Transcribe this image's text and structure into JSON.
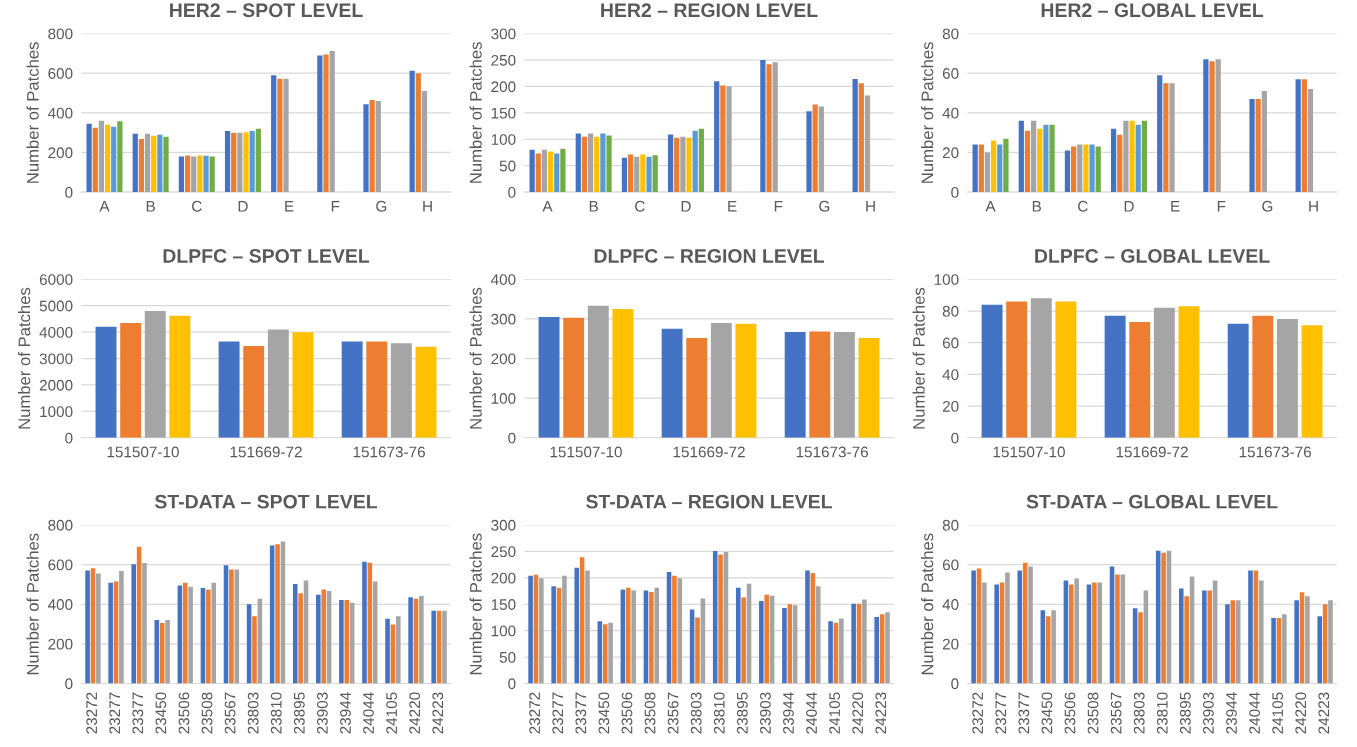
{
  "chart_data": [
    {
      "type": "bar",
      "title": "HER2 – SPOT LEVEL",
      "ylabel": "Number of Patches",
      "categories": [
        "A",
        "B",
        "C",
        "D",
        "E",
        "F",
        "G",
        "H"
      ],
      "ylim": [
        0,
        800
      ],
      "yticks": [
        0,
        200,
        400,
        600,
        800
      ],
      "grid": "y",
      "series": [
        {
          "color": "#4472c4",
          "values": [
            345,
            295,
            180,
            308,
            590,
            690,
            443,
            612
          ]
        },
        {
          "color": "#ed7d31",
          "values": [
            325,
            268,
            185,
            300,
            572,
            695,
            465,
            600
          ]
        },
        {
          "color": "#a5a5a5",
          "values": [
            360,
            295,
            180,
            300,
            572,
            712,
            460,
            510
          ]
        },
        {
          "color": "#ffc000",
          "values": [
            340,
            285,
            185,
            302,
            null,
            null,
            null,
            null
          ]
        },
        {
          "color": "#5b9bd5",
          "values": [
            330,
            290,
            183,
            308,
            null,
            null,
            null,
            null
          ]
        },
        {
          "color": "#70ad47",
          "values": [
            358,
            280,
            180,
            320,
            null,
            null,
            null,
            null
          ]
        }
      ]
    },
    {
      "type": "bar",
      "title": "HER2 – REGION LEVEL",
      "ylabel": "Number of Patches",
      "categories": [
        "A",
        "B",
        "C",
        "D",
        "E",
        "F",
        "G",
        "H"
      ],
      "ylim": [
        0,
        300
      ],
      "yticks": [
        0,
        50,
        100,
        150,
        200,
        250,
        300
      ],
      "grid": "y",
      "series": [
        {
          "color": "#4472c4",
          "values": [
            80,
            111,
            65,
            109,
            210,
            250,
            153,
            214
          ]
        },
        {
          "color": "#ed7d31",
          "values": [
            73,
            105,
            71,
            103,
            202,
            242,
            166,
            206
          ]
        },
        {
          "color": "#a5a5a5",
          "values": [
            80,
            111,
            67,
            105,
            200,
            246,
            162,
            183
          ]
        },
        {
          "color": "#ffc000",
          "values": [
            77,
            105,
            71,
            103,
            null,
            null,
            null,
            null
          ]
        },
        {
          "color": "#5b9bd5",
          "values": [
            73,
            111,
            67,
            116,
            null,
            null,
            null,
            null
          ]
        },
        {
          "color": "#70ad47",
          "values": [
            82,
            107,
            70,
            120,
            null,
            null,
            null,
            null
          ]
        }
      ]
    },
    {
      "type": "bar",
      "title": "HER2 – GLOBAL LEVEL",
      "ylabel": "Number of Patches",
      "categories": [
        "A",
        "B",
        "C",
        "D",
        "E",
        "F",
        "G",
        "H"
      ],
      "ylim": [
        0,
        80
      ],
      "yticks": [
        0,
        20,
        40,
        60,
        80
      ],
      "grid": "y",
      "series": [
        {
          "color": "#4472c4",
          "values": [
            24,
            36,
            21,
            32,
            59,
            67,
            47,
            57
          ]
        },
        {
          "color": "#ed7d31",
          "values": [
            24,
            31,
            23,
            29,
            55,
            66,
            47,
            57
          ]
        },
        {
          "color": "#a5a5a5",
          "values": [
            20,
            36,
            24,
            36,
            55,
            67,
            51,
            52
          ]
        },
        {
          "color": "#ffc000",
          "values": [
            26,
            32,
            24,
            36,
            null,
            null,
            null,
            null
          ]
        },
        {
          "color": "#5b9bd5",
          "values": [
            24,
            34,
            24,
            34,
            null,
            null,
            null,
            null
          ]
        },
        {
          "color": "#70ad47",
          "values": [
            27,
            34,
            23,
            36,
            null,
            null,
            null,
            null
          ]
        }
      ]
    },
    {
      "type": "bar",
      "title": "DLPFC – SPOT LEVEL",
      "ylabel": "Number of Patches",
      "categories": [
        "151507-10",
        "151669-72",
        "151673-76"
      ],
      "ylim": [
        0,
        6000
      ],
      "yticks": [
        0,
        1000,
        2000,
        3000,
        4000,
        5000,
        6000
      ],
      "grid": "y",
      "series": [
        {
          "color": "#4472c4",
          "values": [
            4200,
            3650,
            3650
          ]
        },
        {
          "color": "#ed7d31",
          "values": [
            4350,
            3480,
            3650
          ]
        },
        {
          "color": "#a5a5a5",
          "values": [
            4800,
            4100,
            3580
          ]
        },
        {
          "color": "#ffc000",
          "values": [
            4620,
            4000,
            3450
          ]
        }
      ]
    },
    {
      "type": "bar",
      "title": "DLPFC – REGION LEVEL",
      "ylabel": "Number of Patches",
      "categories": [
        "151507-10",
        "151669-72",
        "151673-76"
      ],
      "ylim": [
        0,
        400
      ],
      "yticks": [
        0,
        100,
        200,
        300,
        400
      ],
      "grid": "y",
      "series": [
        {
          "color": "#4472c4",
          "values": [
            305,
            275,
            267
          ]
        },
        {
          "color": "#ed7d31",
          "values": [
            303,
            252,
            268
          ]
        },
        {
          "color": "#a5a5a5",
          "values": [
            333,
            290,
            267
          ]
        },
        {
          "color": "#ffc000",
          "values": [
            325,
            288,
            252
          ]
        }
      ]
    },
    {
      "type": "bar",
      "title": "DLPFC – GLOBAL LEVEL",
      "ylabel": "Number of Patches",
      "categories": [
        "151507-10",
        "151669-72",
        "151673-76"
      ],
      "ylim": [
        0,
        100
      ],
      "yticks": [
        0,
        20,
        40,
        60,
        80,
        100
      ],
      "grid": "y",
      "series": [
        {
          "color": "#4472c4",
          "values": [
            84,
            77,
            72
          ]
        },
        {
          "color": "#ed7d31",
          "values": [
            86,
            73,
            77
          ]
        },
        {
          "color": "#a5a5a5",
          "values": [
            88,
            82,
            75
          ]
        },
        {
          "color": "#ffc000",
          "values": [
            86,
            83,
            71
          ]
        }
      ]
    },
    {
      "type": "bar",
      "title": "ST-DATA – SPOT LEVEL",
      "ylabel": "Number of Patches",
      "categories": [
        "23272",
        "23277",
        "23377",
        "23450",
        "23506",
        "23508",
        "23567",
        "23803",
        "23810",
        "23895",
        "23903",
        "23944",
        "24044",
        "24105",
        "24220",
        "24223"
      ],
      "ylim": [
        0,
        800
      ],
      "yticks": [
        0,
        200,
        400,
        600,
        800
      ],
      "grid": "y",
      "series": [
        {
          "color": "#4472c4",
          "values": [
            570,
            508,
            602,
            320,
            495,
            482,
            597,
            400,
            697,
            502,
            448,
            422,
            615,
            327,
            435,
            367
          ]
        },
        {
          "color": "#ed7d31",
          "values": [
            582,
            515,
            690,
            305,
            508,
            473,
            575,
            340,
            703,
            455,
            475,
            422,
            610,
            298,
            428,
            367
          ]
        },
        {
          "color": "#a5a5a5",
          "values": [
            555,
            568,
            608,
            320,
            488,
            508,
            575,
            428,
            717,
            520,
            467,
            408,
            515,
            340,
            442,
            367
          ]
        }
      ]
    },
    {
      "type": "bar",
      "title": "ST-DATA – REGION LEVEL",
      "ylabel": "Number of Patches",
      "categories": [
        "23272",
        "23277",
        "23377",
        "23450",
        "23506",
        "23508",
        "23567",
        "23803",
        "23810",
        "23895",
        "23903",
        "23944",
        "24044",
        "24105",
        "24220",
        "24223"
      ],
      "ylim": [
        0,
        300
      ],
      "yticks": [
        0,
        50,
        100,
        150,
        200,
        250,
        300
      ],
      "grid": "y",
      "series": [
        {
          "color": "#4472c4",
          "values": [
            204,
            184,
            219,
            118,
            178,
            176,
            211,
            140,
            251,
            181,
            156,
            143,
            214,
            118,
            151,
            126
          ]
        },
        {
          "color": "#ed7d31",
          "values": [
            206,
            181,
            239,
            112,
            181,
            173,
            204,
            125,
            244,
            163,
            168,
            150,
            209,
            115,
            151,
            131
          ]
        },
        {
          "color": "#a5a5a5",
          "values": [
            199,
            204,
            214,
            115,
            176,
            181,
            199,
            161,
            249,
            189,
            166,
            148,
            184,
            123,
            159,
            135
          ]
        }
      ]
    },
    {
      "type": "bar",
      "title": "ST-DATA – GLOBAL LEVEL",
      "ylabel": "Number of Patches",
      "categories": [
        "23272",
        "23277",
        "23377",
        "23450",
        "23506",
        "23508",
        "23567",
        "23803",
        "23810",
        "23895",
        "23903",
        "23944",
        "24044",
        "24105",
        "24220",
        "24223"
      ],
      "ylim": [
        0,
        80
      ],
      "yticks": [
        0,
        20,
        40,
        60,
        80
      ],
      "grid": "y",
      "series": [
        {
          "color": "#4472c4",
          "values": [
            57,
            50,
            57,
            37,
            52,
            50,
            59,
            38,
            67,
            48,
            47,
            40,
            57,
            33,
            42,
            34
          ]
        },
        {
          "color": "#ed7d31",
          "values": [
            58,
            51,
            61,
            34,
            50,
            51,
            55,
            36,
            66,
            44,
            47,
            42,
            57,
            33,
            46,
            40
          ]
        },
        {
          "color": "#a5a5a5",
          "values": [
            51,
            56,
            59,
            37,
            53,
            51,
            55,
            47,
            67,
            54,
            52,
            42,
            52,
            35,
            44,
            42
          ]
        }
      ]
    }
  ]
}
